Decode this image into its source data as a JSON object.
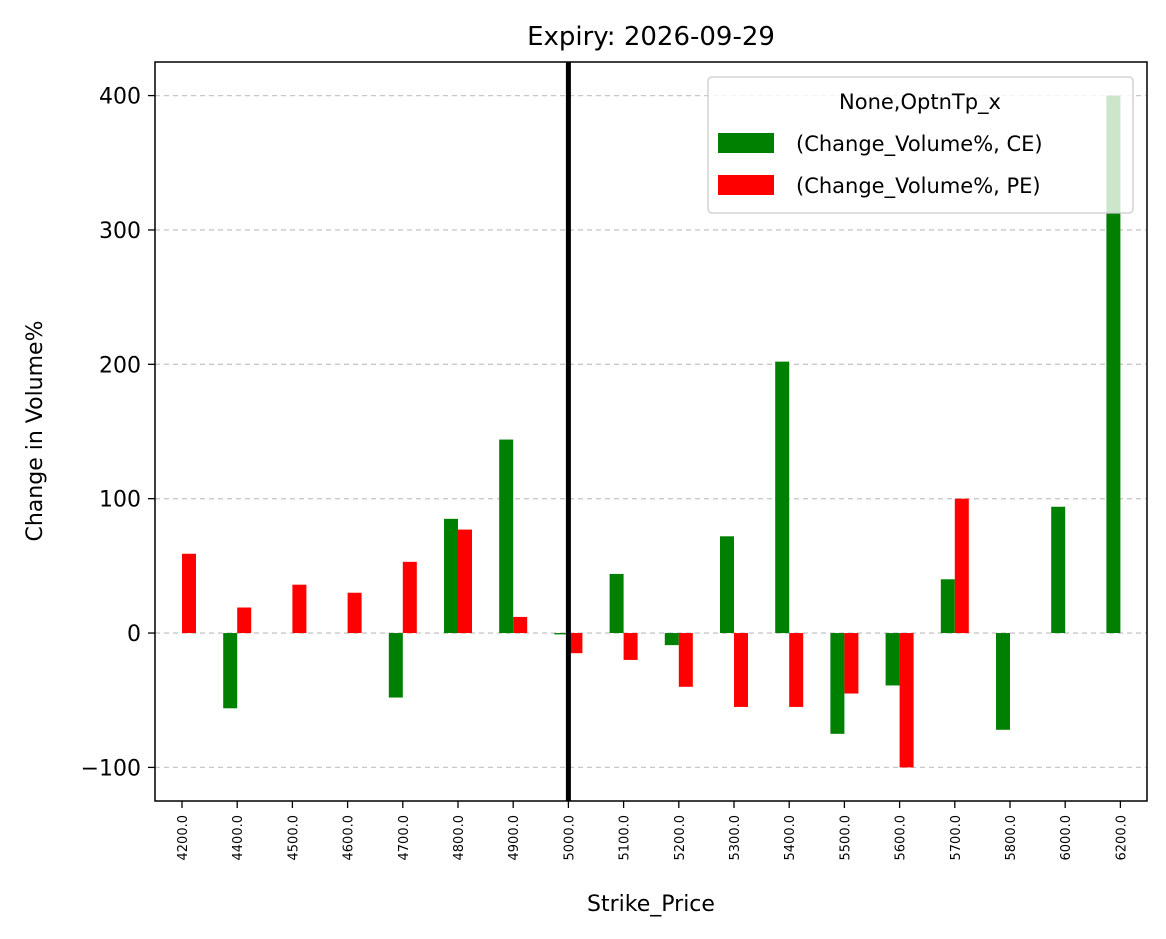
{
  "chart_data": {
    "type": "bar",
    "title": "Expiry: 2026-09-29",
    "xlabel": "Strike_Price",
    "ylabel": "Change in Volume%",
    "categories": [
      "4200.0",
      "4400.0",
      "4500.0",
      "4600.0",
      "4700.0",
      "4800.0",
      "4900.0",
      "5000.0",
      "5100.0",
      "5200.0",
      "5300.0",
      "5400.0",
      "5500.0",
      "5600.0",
      "5700.0",
      "5800.0",
      "6000.0",
      "6200.0"
    ],
    "ylim": [
      -125,
      425
    ],
    "yticks": [
      -100,
      0,
      100,
      200,
      300,
      400
    ],
    "ytick_labels": [
      "−100",
      "0",
      "100",
      "200",
      "300",
      "400"
    ],
    "grid": "y dashed",
    "legend": {
      "title": "None,OptnTp_x",
      "placement": "top-right"
    },
    "vline": {
      "category": "5000.0",
      "color": "#000000"
    },
    "series": [
      {
        "name": "(Change_Volume%, CE)",
        "color": "#008000",
        "values": [
          null,
          -56,
          null,
          null,
          -48,
          85,
          144,
          -1,
          44,
          -9,
          72,
          202,
          -75,
          -39,
          40,
          -72,
          94,
          400
        ]
      },
      {
        "name": "(Change_Volume%, PE)",
        "color": "#ff0000",
        "values": [
          59,
          19,
          36,
          30,
          53,
          77,
          12,
          -15,
          -20,
          -40,
          -55,
          -55,
          -45,
          -100,
          100,
          null,
          null,
          null
        ]
      }
    ]
  }
}
